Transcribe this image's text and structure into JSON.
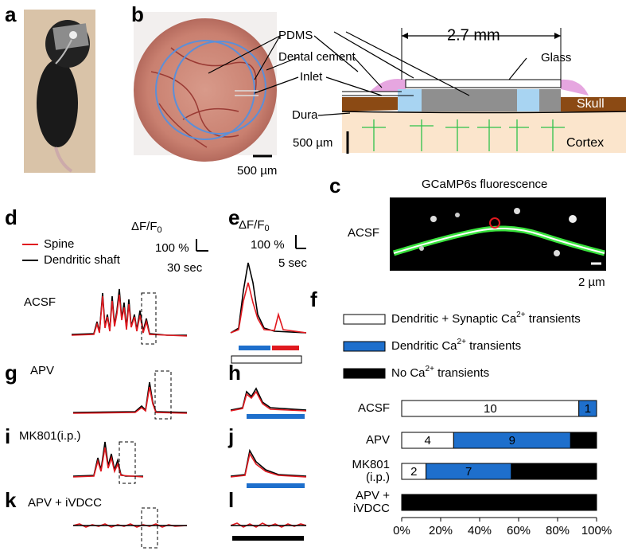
{
  "figure": {
    "letters": {
      "a": "a",
      "b": "b",
      "c": "c",
      "d": "d",
      "e": "e",
      "f": "f",
      "g": "g",
      "h": "h",
      "i": "i",
      "j": "j",
      "k": "k",
      "l": "l"
    },
    "schematic": {
      "pdms": "PDMS",
      "dental_cement": "Dental cement",
      "inlet": "Inlet",
      "dura": "Dura",
      "width": "2.7 mm",
      "glass": "Glass",
      "skull": "Skull",
      "cortex": "Cortex",
      "scale": "500 µm"
    },
    "photo_scale": "500 µm",
    "image": {
      "title": "GCaMP6s fluorescence",
      "condition": "ACSF",
      "scale": "2 µm"
    },
    "dff": {
      "text": "ΔF/F",
      "sub": "0"
    },
    "traces": {
      "amp_scale": "100 %",
      "time_long": "30 sec",
      "time_short": "5 sec",
      "spine": "Spine",
      "shaft": "Dendritic shaft",
      "conditions": [
        "ACSF",
        "APV",
        "MK801(i.p.)",
        "APV + iVDCC"
      ]
    }
  },
  "chart_data": {
    "type": "stacked-bar-normalized",
    "categories": [
      "ACSF",
      "APV",
      "MK801 (i.p.)",
      "APV + iVDCC"
    ],
    "series": [
      {
        "name": "Dendritic + Synaptic Ca2+ transients",
        "color": "#ffffff",
        "values": [
          10,
          4,
          2,
          0
        ]
      },
      {
        "name": "Dendritic Ca2+ transients",
        "color": "#1e6fcc",
        "values": [
          1,
          9,
          7,
          0
        ]
      },
      {
        "name": "No Ca2+ transients",
        "color": "#000000",
        "values": [
          0,
          2,
          7,
          11
        ]
      }
    ],
    "xlim": [
      0,
      100
    ],
    "xticks": [
      {
        "value": 0,
        "label": "0%"
      },
      {
        "value": 20,
        "label": "20%"
      },
      {
        "value": 40,
        "label": "40%"
      },
      {
        "value": 60,
        "label": "60%"
      },
      {
        "value": 80,
        "label": "80%"
      },
      {
        "value": 100,
        "label": "100%"
      }
    ]
  }
}
